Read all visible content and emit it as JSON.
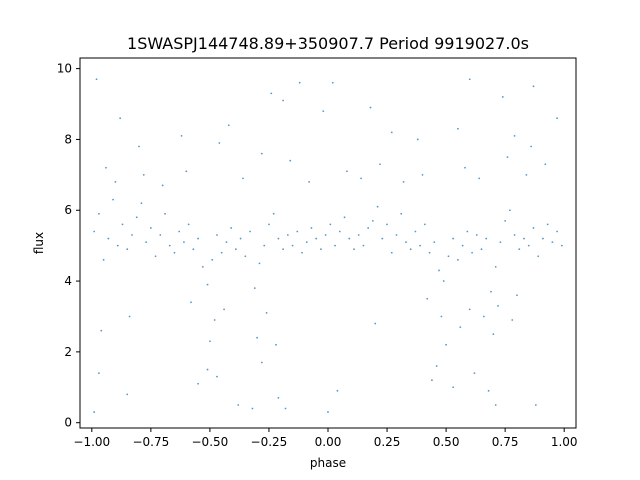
{
  "chart_data": {
    "type": "scatter",
    "title": "1SWASPJ144748.89+350907.7 Period 9919027.0s",
    "xlabel": "phase",
    "ylabel": "flux",
    "xlim": [
      -1.05,
      1.05
    ],
    "ylim": [
      -0.15,
      10.3
    ],
    "x_ticks": [
      -1.0,
      -0.75,
      -0.5,
      -0.25,
      0.0,
      0.25,
      0.5,
      0.75,
      1.0
    ],
    "x_tick_labels": [
      "−1.00",
      "−0.75",
      "−0.50",
      "−0.25",
      "0.00",
      "0.25",
      "0.50",
      "0.75",
      "1.00"
    ],
    "y_ticks": [
      0,
      2,
      4,
      6,
      8,
      10
    ],
    "y_tick_labels": [
      "0",
      "2",
      "4",
      "6",
      "8",
      "10"
    ],
    "grid": false,
    "legend": "none",
    "marker_color": "#1f77b4",
    "points": [
      [
        -0.99,
        5.4
      ],
      [
        -0.97,
        5.9
      ],
      [
        -0.95,
        4.6
      ],
      [
        -0.93,
        5.2
      ],
      [
        -0.91,
        6.3
      ],
      [
        -0.89,
        5.0
      ],
      [
        -0.87,
        5.6
      ],
      [
        -0.85,
        4.9
      ],
      [
        -0.83,
        5.3
      ],
      [
        -0.81,
        5.8
      ],
      [
        -0.79,
        6.2
      ],
      [
        -0.77,
        5.1
      ],
      [
        -0.75,
        5.5
      ],
      [
        -0.73,
        4.7
      ],
      [
        -0.71,
        5.3
      ],
      [
        -0.69,
        5.9
      ],
      [
        -0.67,
        5.0
      ],
      [
        -0.65,
        4.8
      ],
      [
        -0.63,
        5.4
      ],
      [
        -0.61,
        5.1
      ],
      [
        -0.59,
        5.6
      ],
      [
        -0.57,
        4.9
      ],
      [
        -0.55,
        5.2
      ],
      [
        -0.53,
        4.4
      ],
      [
        -0.51,
        3.9
      ],
      [
        -0.49,
        4.6
      ],
      [
        -0.47,
        5.3
      ],
      [
        -0.45,
        4.8
      ],
      [
        -0.43,
        5.1
      ],
      [
        -0.41,
        5.5
      ],
      [
        -0.39,
        4.9
      ],
      [
        -0.37,
        5.2
      ],
      [
        -0.35,
        4.7
      ],
      [
        -0.33,
        5.4
      ],
      [
        -0.31,
        3.8
      ],
      [
        -0.29,
        4.5
      ],
      [
        -0.27,
        5.0
      ],
      [
        -0.25,
        5.6
      ],
      [
        -0.23,
        5.9
      ],
      [
        -0.21,
        5.2
      ],
      [
        -0.19,
        4.9
      ],
      [
        -0.17,
        5.3
      ],
      [
        -0.15,
        5.0
      ],
      [
        -0.13,
        5.4
      ],
      [
        -0.11,
        4.8
      ],
      [
        -0.09,
        5.1
      ],
      [
        -0.07,
        5.5
      ],
      [
        -0.05,
        5.2
      ],
      [
        -0.03,
        4.9
      ],
      [
        -0.01,
        5.3
      ],
      [
        0.01,
        5.6
      ],
      [
        0.03,
        5.0
      ],
      [
        0.05,
        5.4
      ],
      [
        0.07,
        5.8
      ],
      [
        0.09,
        5.2
      ],
      [
        0.11,
        4.9
      ],
      [
        0.13,
        5.3
      ],
      [
        0.15,
        5.0
      ],
      [
        0.17,
        5.5
      ],
      [
        0.19,
        5.7
      ],
      [
        0.21,
        6.1
      ],
      [
        0.23,
        5.2
      ],
      [
        0.25,
        5.6
      ],
      [
        0.27,
        4.8
      ],
      [
        0.29,
        5.3
      ],
      [
        0.31,
        5.9
      ],
      [
        0.33,
        5.1
      ],
      [
        0.35,
        4.9
      ],
      [
        0.37,
        5.4
      ],
      [
        0.39,
        5.0
      ],
      [
        0.41,
        5.6
      ],
      [
        0.43,
        4.8
      ],
      [
        0.45,
        5.1
      ],
      [
        0.47,
        4.3
      ],
      [
        0.49,
        4.0
      ],
      [
        0.51,
        4.7
      ],
      [
        0.53,
        5.2
      ],
      [
        0.55,
        4.6
      ],
      [
        0.57,
        5.0
      ],
      [
        0.59,
        5.4
      ],
      [
        0.61,
        4.8
      ],
      [
        0.63,
        5.3
      ],
      [
        0.65,
        4.9
      ],
      [
        0.67,
        5.2
      ],
      [
        0.69,
        3.7
      ],
      [
        0.71,
        4.4
      ],
      [
        0.73,
        5.1
      ],
      [
        0.75,
        5.7
      ],
      [
        0.77,
        6.0
      ],
      [
        0.79,
        5.3
      ],
      [
        0.81,
        4.9
      ],
      [
        0.83,
        5.2
      ],
      [
        0.85,
        5.0
      ],
      [
        0.87,
        5.5
      ],
      [
        0.89,
        4.7
      ],
      [
        0.91,
        5.2
      ],
      [
        0.93,
        5.6
      ],
      [
        0.95,
        5.1
      ],
      [
        0.97,
        5.4
      ],
      [
        0.99,
        5.0
      ],
      [
        -0.98,
        9.7
      ],
      [
        -0.88,
        8.6
      ],
      [
        -0.8,
        7.8
      ],
      [
        -0.62,
        8.1
      ],
      [
        -0.46,
        7.9
      ],
      [
        -0.42,
        8.4
      ],
      [
        -0.24,
        9.3
      ],
      [
        -0.19,
        9.1
      ],
      [
        -0.12,
        9.6
      ],
      [
        -0.02,
        8.8
      ],
      [
        0.02,
        9.6
      ],
      [
        0.18,
        8.9
      ],
      [
        0.27,
        8.2
      ],
      [
        0.38,
        8.0
      ],
      [
        0.55,
        8.3
      ],
      [
        0.6,
        9.7
      ],
      [
        0.74,
        9.2
      ],
      [
        0.79,
        8.1
      ],
      [
        0.87,
        9.5
      ],
      [
        0.97,
        8.6
      ],
      [
        -0.99,
        0.3
      ],
      [
        -0.97,
        1.4
      ],
      [
        -0.85,
        0.8
      ],
      [
        -0.55,
        1.1
      ],
      [
        -0.51,
        1.5
      ],
      [
        -0.47,
        1.3
      ],
      [
        -0.38,
        0.5
      ],
      [
        -0.32,
        0.4
      ],
      [
        -0.28,
        1.7
      ],
      [
        -0.21,
        0.7
      ],
      [
        -0.18,
        0.4
      ],
      [
        0.0,
        0.3
      ],
      [
        0.04,
        0.9
      ],
      [
        0.44,
        1.2
      ],
      [
        0.46,
        1.6
      ],
      [
        0.53,
        1.0
      ],
      [
        0.62,
        1.4
      ],
      [
        0.68,
        0.9
      ],
      [
        0.71,
        0.5
      ],
      [
        0.88,
        0.5
      ],
      [
        -0.96,
        2.6
      ],
      [
        -0.84,
        3.0
      ],
      [
        -0.5,
        2.3
      ],
      [
        -0.48,
        2.9
      ],
      [
        -0.3,
        2.4
      ],
      [
        -0.26,
        3.1
      ],
      [
        -0.22,
        2.2
      ],
      [
        0.2,
        2.8
      ],
      [
        0.48,
        3.0
      ],
      [
        0.5,
        2.2
      ],
      [
        0.56,
        2.7
      ],
      [
        0.6,
        3.2
      ],
      [
        0.7,
        2.5
      ],
      [
        0.72,
        3.3
      ],
      [
        0.78,
        2.9
      ],
      [
        0.8,
        3.6
      ],
      [
        -0.58,
        3.4
      ],
      [
        -0.44,
        3.2
      ],
      [
        0.42,
        3.5
      ],
      [
        0.66,
        3.0
      ],
      [
        -0.94,
        7.2
      ],
      [
        -0.9,
        6.8
      ],
      [
        -0.78,
        7.0
      ],
      [
        -0.7,
        6.7
      ],
      [
        -0.6,
        7.1
      ],
      [
        -0.36,
        6.9
      ],
      [
        -0.16,
        7.4
      ],
      [
        -0.08,
        6.8
      ],
      [
        0.08,
        7.1
      ],
      [
        0.14,
        6.9
      ],
      [
        0.22,
        7.3
      ],
      [
        0.32,
        6.8
      ],
      [
        0.4,
        7.0
      ],
      [
        0.58,
        7.2
      ],
      [
        0.64,
        6.9
      ],
      [
        0.76,
        7.5
      ],
      [
        0.84,
        7.0
      ],
      [
        0.92,
        7.3
      ],
      [
        -0.28,
        7.6
      ],
      [
        0.86,
        7.8
      ]
    ]
  }
}
